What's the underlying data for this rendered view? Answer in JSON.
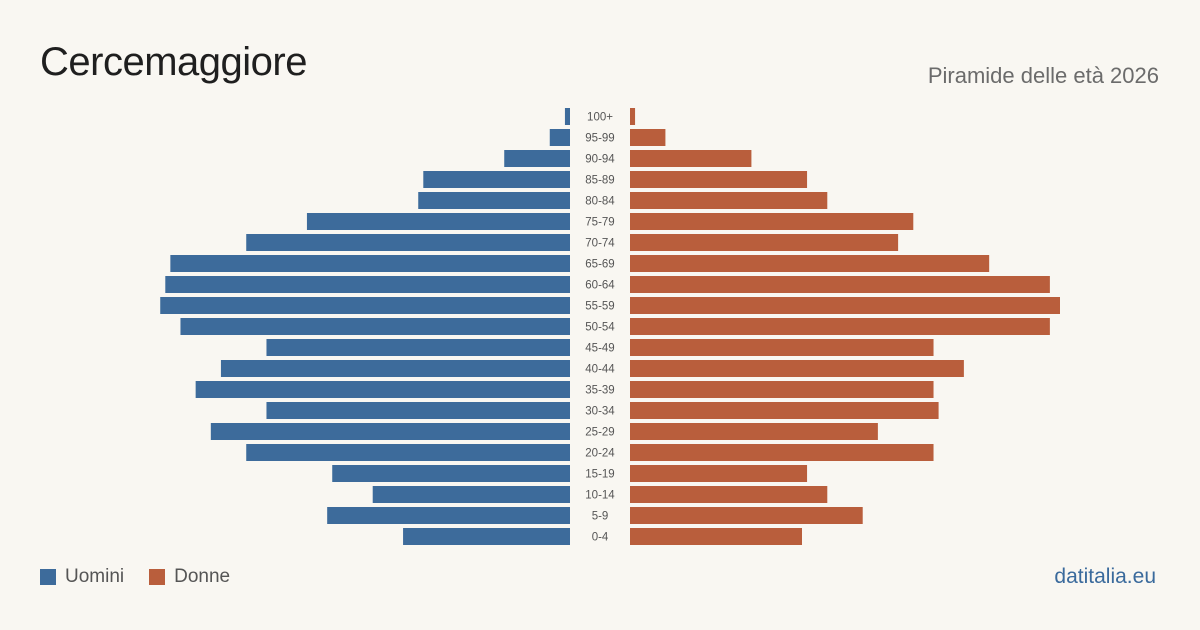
{
  "header": {
    "title": "Cercemaggiore",
    "subtitle": "Piramide delle età 2026"
  },
  "legend": {
    "men_label": "Uomini",
    "women_label": "Donne"
  },
  "footer": {
    "brand": "datitalia.eu"
  },
  "colors": {
    "men": "#3d6b9b",
    "women": "#b95e3c",
    "background": "#f9f7f2"
  },
  "chart_data": {
    "type": "bar",
    "orientation": "horizontal-pyramid",
    "categories": [
      "100+",
      "95-99",
      "90-94",
      "85-89",
      "80-84",
      "75-79",
      "70-74",
      "65-69",
      "60-64",
      "55-59",
      "50-54",
      "45-49",
      "40-44",
      "35-39",
      "30-34",
      "25-29",
      "20-24",
      "15-19",
      "10-14",
      "5-9",
      "0-4"
    ],
    "series": [
      {
        "name": "Uomini",
        "values": [
          1,
          4,
          13,
          29,
          30,
          52,
          64,
          79,
          80,
          81,
          77,
          60,
          69,
          74,
          60,
          71,
          64,
          47,
          39,
          48,
          33
        ]
      },
      {
        "name": "Donne",
        "values": [
          1,
          7,
          24,
          35,
          39,
          56,
          53,
          71,
          83,
          85,
          83,
          60,
          66,
          60,
          61,
          49,
          60,
          35,
          39,
          46,
          34
        ]
      }
    ],
    "grid": false,
    "legend_position": "bottom-left"
  }
}
